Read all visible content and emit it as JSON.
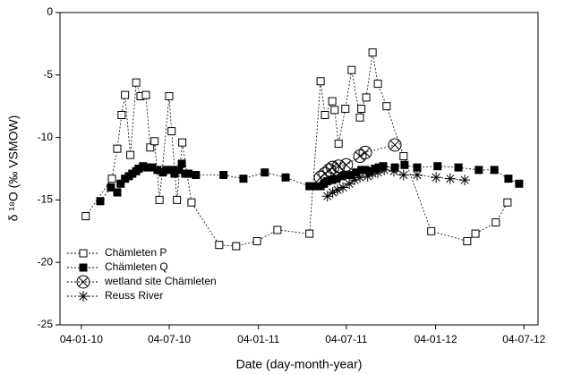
{
  "chart_data": {
    "type": "line",
    "xlabel": "Date (day-month-year)",
    "ylabel": "δ ¹⁸O (‰ VSMOW)",
    "xlim": [
      "21-11-09",
      "02-08-12"
    ],
    "xticks": [
      "04-01-10",
      "04-07-10",
      "04-01-11",
      "04-07-11",
      "04-01-12",
      "04-07-12"
    ],
    "ylim": [
      -25,
      0
    ],
    "yticks": [
      -25,
      -20,
      -15,
      -10,
      -5,
      0
    ],
    "legend": "lower-left",
    "series": [
      {
        "name": "Chämleten P",
        "color": "#000000",
        "marker": "open-square",
        "x": [
          "13-01-10",
          "08-03-10",
          "19-03-10",
          "28-03-10",
          "04-04-10",
          "15-04-10",
          "27-04-10",
          "06-05-10",
          "17-05-10",
          "26-05-10",
          "04-06-10",
          "14-06-10",
          "04-07-10",
          "09-07-10",
          "20-07-10",
          "31-07-10",
          "19-08-10",
          "15-10-10",
          "19-11-10",
          "01-01-11",
          "12-02-11",
          "19-04-11",
          "12-05-11",
          "21-05-11",
          "05-06-11",
          "10-06-11",
          "18-06-11",
          "02-07-11",
          "15-07-11",
          "01-08-11",
          "04-08-11",
          "14-08-11",
          "27-08-11",
          "07-09-11",
          "25-09-11",
          "30-10-11",
          "26-12-11",
          "09-03-12",
          "26-03-12",
          "07-05-12",
          "31-05-12"
        ],
        "values": [
          -16.3,
          -13.3,
          -10.9,
          -8.2,
          -6.6,
          -11.4,
          -5.6,
          -6.7,
          -6.6,
          -10.8,
          -10.3,
          -15.0,
          -6.7,
          -9.5,
          -15.0,
          -10.4,
          -15.2,
          -18.6,
          -18.7,
          -18.3,
          -17.4,
          -17.7,
          -5.5,
          -8.2,
          -7.1,
          -7.8,
          -10.5,
          -7.7,
          -4.6,
          -8.4,
          -7.7,
          -6.8,
          -3.2,
          -5.7,
          -7.5,
          -11.5,
          -17.5,
          -18.3,
          -17.7,
          -16.8,
          -15.2
        ]
      },
      {
        "name": "Chämleten Q",
        "color": "#000000",
        "marker": "filled-square",
        "x": [
          "12-02-10",
          "06-03-10",
          "19-03-10",
          "26-03-10",
          "04-04-10",
          "12-04-10",
          "19-04-10",
          "27-04-10",
          "02-05-10",
          "11-05-10",
          "19-05-10",
          "30-05-10",
          "10-06-10",
          "21-06-10",
          "28-06-10",
          "09-07-10",
          "15-07-10",
          "24-07-10",
          "30-07-10",
          "06-08-10",
          "13-08-10",
          "28-08-10",
          "24-10-10",
          "04-12-10",
          "17-01-11",
          "01-03-11",
          "19-04-11",
          "01-05-11",
          "12-05-11",
          "19-05-11",
          "26-05-11",
          "05-06-11",
          "14-06-11",
          "25-06-11",
          "02-07-11",
          "13-07-11",
          "24-07-11",
          "04-08-11",
          "12-08-11",
          "21-08-11",
          "01-09-11",
          "09-09-11",
          "18-09-11",
          "12-10-11",
          "01-11-11",
          "27-11-11",
          "08-01-12",
          "20-02-12",
          "02-04-12",
          "04-05-12",
          "02-06-12",
          "24-06-12"
        ],
        "values": [
          -15.1,
          -14.0,
          -14.4,
          -13.7,
          -13.3,
          -13.1,
          -12.9,
          -12.7,
          -12.5,
          -12.3,
          -12.4,
          -12.4,
          -12.6,
          -12.8,
          -12.6,
          -12.6,
          -12.9,
          -12.6,
          -12.1,
          -12.9,
          -12.9,
          -13.0,
          -13.0,
          -13.3,
          -12.8,
          -13.2,
          -13.9,
          -13.9,
          -13.9,
          -13.7,
          -13.5,
          -13.4,
          -13.3,
          -13.1,
          -13.0,
          -13.0,
          -12.8,
          -12.6,
          -12.6,
          -12.7,
          -12.5,
          -12.4,
          -12.3,
          -12.4,
          -12.2,
          -12.4,
          -12.3,
          -12.4,
          -12.6,
          -12.6,
          -13.3,
          -13.7
        ]
      },
      {
        "name": "wetland site Chämleten",
        "color": "#000000",
        "marker": "circle-x",
        "x": [
          "12-05-11",
          "21-05-11",
          "30-05-11",
          "06-06-11",
          "18-06-11",
          "04-07-11",
          "01-08-11",
          "12-08-11",
          "12-10-11"
        ],
        "values": [
          -13.2,
          -12.9,
          -12.6,
          -12.4,
          -12.3,
          -12.2,
          -11.5,
          -11.2,
          -10.6
        ]
      },
      {
        "name": "Reuss River",
        "color": "#000000",
        "marker": "asterisk",
        "x": [
          "26-05-11",
          "06-06-11",
          "16-06-11",
          "27-06-11",
          "10-07-11",
          "21-07-11",
          "01-08-11",
          "17-08-11",
          "27-08-11",
          "07-09-11",
          "20-09-11",
          "10-10-11",
          "30-10-11",
          "27-11-11",
          "05-01-12",
          "03-02-12",
          "04-03-12"
        ],
        "values": [
          -14.7,
          -14.4,
          -14.2,
          -14.0,
          -13.7,
          -13.4,
          -13.2,
          -13.1,
          -12.9,
          -12.8,
          -12.6,
          -12.7,
          -13.0,
          -13.0,
          -13.2,
          -13.3,
          -13.4
        ]
      }
    ]
  }
}
